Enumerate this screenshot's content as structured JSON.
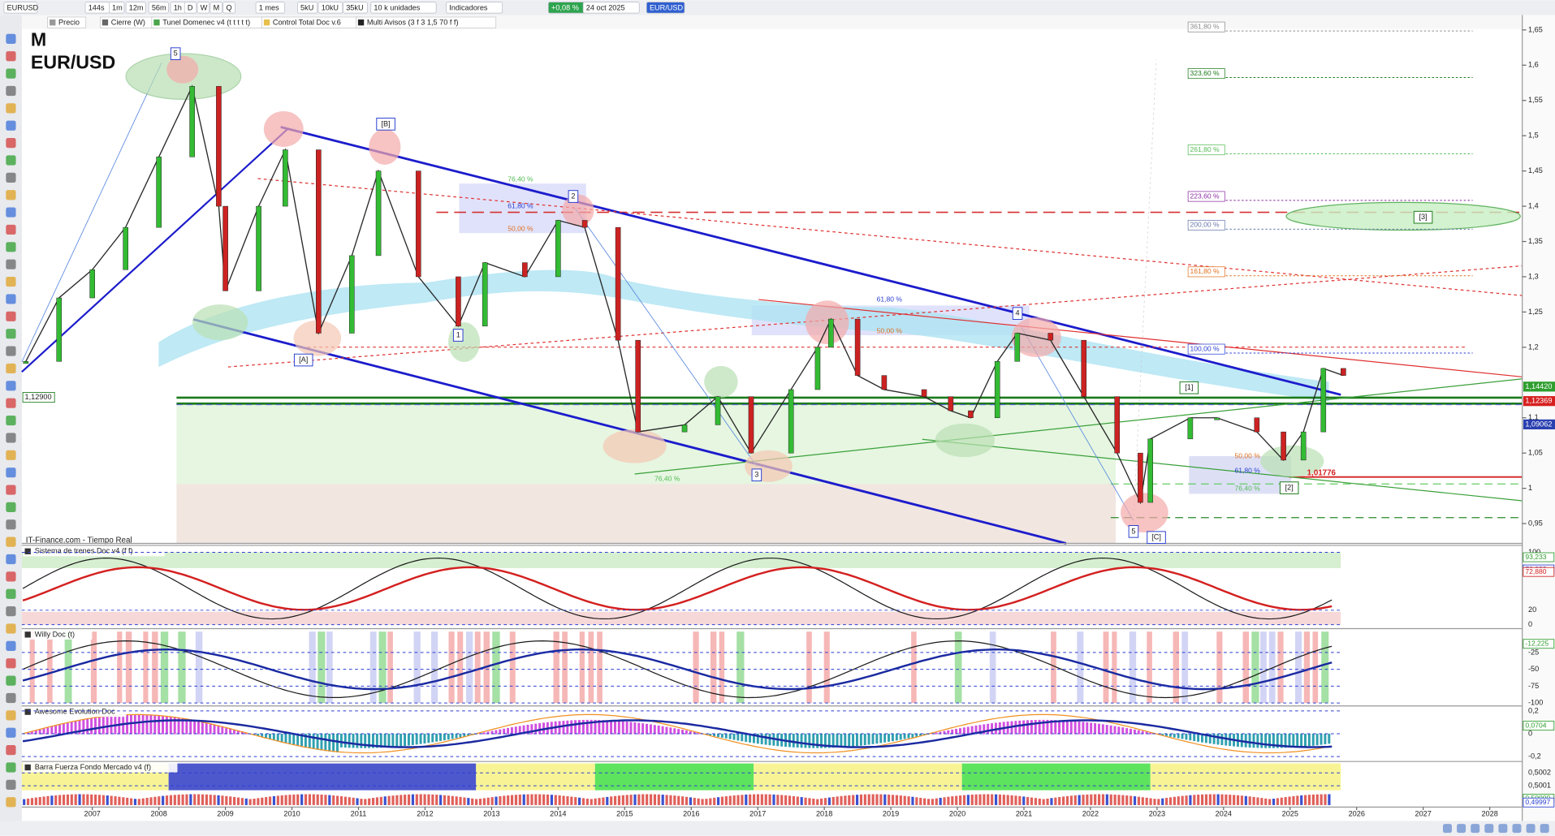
{
  "toolbar": [
    "EURUSD",
    "144s",
    "1m",
    "12m",
    "56m",
    "1h",
    "D",
    "W",
    "M",
    "Q",
    "1 mes",
    "5kU",
    "10kU",
    "35kU",
    "10 k unidades",
    "Indicadores",
    "+0,08 %",
    "24 oct 2025",
    "EUR/USD"
  ],
  "indicator_tabs": [
    "Precio",
    "Cierre (W)",
    "Tunel Domenec v4 (t t t t t)",
    "Control Total Doc v.6",
    "Multi Avisos (3 f 3 1,5 70 f f)"
  ],
  "chart": {
    "timeframe": "M",
    "symbol": "EUR/USD",
    "source": "IT-Finance.com - Tiempo Real",
    "yticks": [
      {
        "value": 1.65,
        "label": "1,65"
      },
      {
        "value": 1.6,
        "label": "1,6"
      },
      {
        "value": 1.55,
        "label": "1,55"
      },
      {
        "value": 1.5,
        "label": "1,5"
      },
      {
        "value": 1.45,
        "label": "1,45"
      },
      {
        "value": 1.4,
        "label": "1,4"
      },
      {
        "value": 1.35,
        "label": "1,35"
      },
      {
        "value": 1.3,
        "label": "1,3"
      },
      {
        "value": 1.25,
        "label": "1,25"
      },
      {
        "value": 1.2,
        "label": "1,2"
      },
      {
        "value": 1.1,
        "label": "1,1"
      },
      {
        "value": 1.05,
        "label": "1,05"
      },
      1,
      {
        "value": 0.95,
        "label": "0,95"
      }
    ],
    "ylim": [
      0.95,
      1.65
    ],
    "price_labels": [
      {
        "value": 1.1442,
        "label": "1,14420",
        "color": "#2e9e2e"
      },
      {
        "value": 1.12369,
        "label": "1,12369",
        "color": "#d62020"
      },
      {
        "value": 1.09062,
        "label": "1,09062",
        "color": "#2a3fb0"
      }
    ],
    "left_price_label": {
      "value": 1.129,
      "label": "1,12900"
    },
    "marker_label": "1,01776",
    "fib_labels": [
      "361,80 %",
      "323,60 %",
      "261,80 %",
      "223,60 %",
      "200,00 %",
      "161,80 %",
      "100,00 %",
      "76,40 %",
      "61,80 %",
      "50,00 %",
      "61,80 %",
      "50,00 %",
      "76,40 %",
      "50,00 %",
      "61,80 %",
      "76,40 %"
    ],
    "wave_labels": [
      "5",
      "[B]",
      "2",
      "1",
      "[A]",
      "3",
      "4",
      "5",
      "[C]",
      "[1]",
      "[2]",
      "[3]"
    ],
    "price_line": {
      "x": [
        2006.0,
        2006.5,
        2007.0,
        2007.5,
        2008.0,
        2008.5,
        2008.9,
        2009.0,
        2009.5,
        2009.9,
        2010.4,
        2010.9,
        2011.3,
        2011.9,
        2012.5,
        2012.9,
        2013.5,
        2014.0,
        2014.4,
        2014.9,
        2015.2,
        2015.9,
        2016.4,
        2016.9,
        2017.5,
        2017.9,
        2018.1,
        2018.5,
        2018.9,
        2019.5,
        2019.9,
        2020.2,
        2020.6,
        2020.9,
        2021.4,
        2021.9,
        2022.4,
        2022.75,
        2022.9,
        2023.5,
        2023.9,
        2024.5,
        2024.9,
        2025.2,
        2025.5,
        2025.8
      ],
      "values": [
        1.18,
        1.27,
        1.31,
        1.37,
        1.47,
        1.57,
        1.4,
        1.28,
        1.4,
        1.48,
        1.22,
        1.33,
        1.45,
        1.3,
        1.23,
        1.32,
        1.3,
        1.38,
        1.37,
        1.21,
        1.08,
        1.09,
        1.13,
        1.05,
        1.14,
        1.2,
        1.24,
        1.16,
        1.14,
        1.13,
        1.11,
        1.1,
        1.18,
        1.22,
        1.21,
        1.13,
        1.05,
        0.98,
        1.07,
        1.1,
        1.1,
        1.08,
        1.04,
        1.08,
        1.17,
        1.16
      ]
    },
    "xlim": [
      2006.0,
      2028.5
    ]
  },
  "years": [
    2007,
    2008,
    2009,
    2010,
    2011,
    2012,
    2013,
    2014,
    2015,
    2016,
    2017,
    2018,
    2019,
    2020,
    2021,
    2022,
    2023,
    2024,
    2025,
    2026,
    2027,
    2028
  ],
  "panels": [
    {
      "title": "Sistema de trenes Doc v4 (f f)",
      "ylim": [
        0,
        100
      ],
      "ticks": [
        100,
        20,
        0
      ],
      "value_labels": [
        {
          "value": 93.233,
          "label": "93,233"
        },
        {
          "value": 76.332,
          "label": "76,332"
        },
        {
          "value": 72.88,
          "label": "72,880"
        }
      ]
    },
    {
      "title": "Willy Doc (t)",
      "ylim": [
        -100,
        0
      ],
      "ticks": [
        -25,
        -50,
        -75,
        -100
      ],
      "value_labels": [
        {
          "value": -12.225,
          "label": "-12,225"
        }
      ]
    },
    {
      "title": "Awesome Evolution Doc",
      "ylim": [
        -0.2,
        0.2
      ],
      "ticks": [
        {
          "value": 0.2,
          "label": "0,2"
        },
        0,
        {
          "value": -0.2,
          "label": "-0,2"
        }
      ],
      "value_labels": [
        {
          "value": 0.0704,
          "label": "0,0704"
        }
      ]
    },
    {
      "title": "Barra Fuerza Fondo Mercado v4 (f)",
      "ylim": [
        0.49995,
        0.50025
      ],
      "ticks": [
        {
          "value": 0.5002,
          "label": "0,5002"
        },
        {
          "value": 0.5001,
          "label": "0,5001"
        }
      ],
      "value_labels": [
        {
          "value": 0.5,
          "label": "0,50000"
        },
        {
          "value": 0.49997,
          "label": "0,49997"
        }
      ]
    }
  ]
}
